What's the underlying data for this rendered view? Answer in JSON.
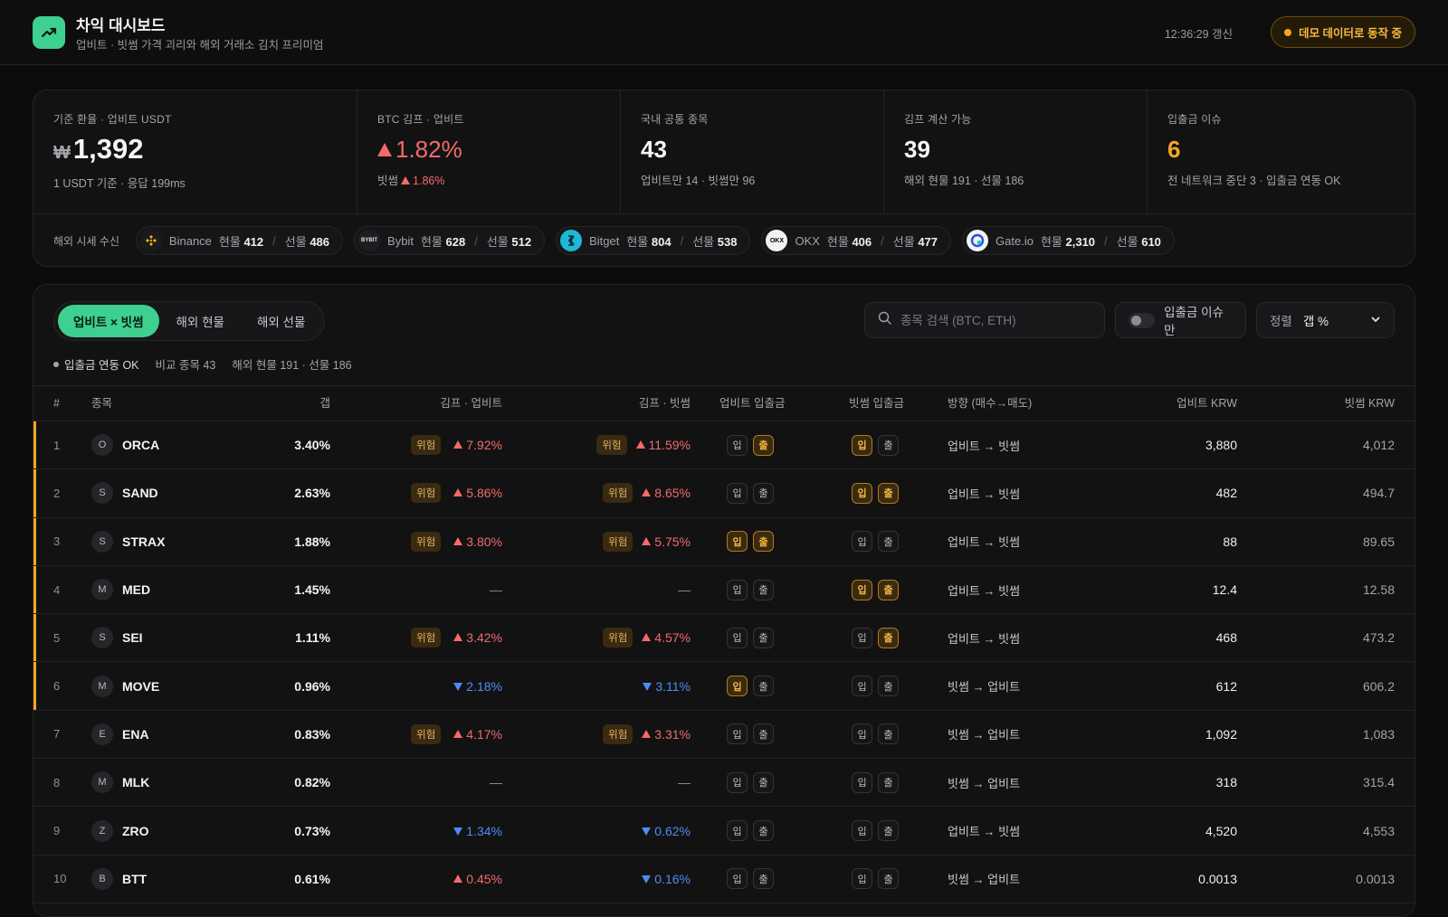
{
  "header": {
    "title": "차익 대시보드",
    "subtitle": "업비트 · 빗썸 가격 괴리와 해외 거래소 김치 프리미엄",
    "updated": "12:36:29 갱신",
    "demo_badge": "데모 데이터로 동작 중",
    "logo_icon": "trending-up-icon",
    "accent": "#3ed08e"
  },
  "stats": {
    "cards": [
      {
        "label": "기준 환율 · 업비트 USDT",
        "currency": "₩",
        "value": "1,392",
        "sub": "1 USDT 기준 · 응답 199ms"
      },
      {
        "label": "BTC 김프 · 업비트",
        "value": "1.82%",
        "sub_prefix": "빗썸",
        "sub_value": "1.86%"
      },
      {
        "label": "국내 공통 종목",
        "value": "43",
        "sub": "업비트만 14 · 빗썸만 96"
      },
      {
        "label": "김프 계산 가능",
        "value": "39",
        "sub": "해외 현물 191 · 선물 186"
      },
      {
        "label": "입출금 이슈",
        "value": "6",
        "sub": "전 네트워크 중단 3 · 입출금 연동 OK"
      }
    ],
    "exchange_label": "해외 시세 수신",
    "exchanges": [
      {
        "name": "Binance",
        "spot_label": "현물",
        "spot": "412",
        "fut_label": "선물",
        "fut": "486",
        "icon": "binance-icon"
      },
      {
        "name": "Bybit",
        "spot_label": "현물",
        "spot": "628",
        "fut_label": "선물",
        "fut": "512",
        "icon": "bybit-icon",
        "icon_text": "BYBIT"
      },
      {
        "name": "Bitget",
        "spot_label": "현물",
        "spot": "804",
        "fut_label": "선물",
        "fut": "538",
        "icon": "bitget-icon"
      },
      {
        "name": "OKX",
        "spot_label": "현물",
        "spot": "406",
        "fut_label": "선물",
        "fut": "477",
        "icon": "okx-icon",
        "icon_text": "OKX"
      },
      {
        "name": "Gate.io",
        "spot_label": "현물",
        "spot": "2,310",
        "fut_label": "선물",
        "fut": "610",
        "icon": "gateio-icon"
      }
    ]
  },
  "controls": {
    "tabs": [
      "업비트 × 빗썸",
      "해외 현물",
      "해외 선물"
    ],
    "active_tab": 0,
    "search_placeholder": "종목 검색 (BTC, ETH)",
    "toggle_label": "입출금 이슈만",
    "sort_label": "정렬",
    "sort_value": "갭 %"
  },
  "meta": {
    "status": "입출금 연동 OK",
    "compare": "비교 종목 43",
    "overseas": "해외 현물 191 · 선물 186"
  },
  "table": {
    "headers": {
      "idx": "#",
      "symbol": "종목",
      "gap": "갭",
      "kp_upbit": "김프 · 업비트",
      "kp_bithumb": "김프 · 빗썸",
      "io_upbit": "업비트 입출금",
      "io_bithumb": "빗썸 입출금",
      "direction": "방향 (매수→매도)",
      "krw_upbit": "업비트 KRW",
      "krw_bithumb": "빗썸 KRW"
    },
    "risk_label": "위험",
    "in_label": "입",
    "out_label": "출",
    "rows": [
      {
        "idx": "1",
        "initial": "O",
        "symbol": "ORCA",
        "gap": "3.40%",
        "kp1": {
          "risk": true,
          "dir": "up",
          "v": "7.92%"
        },
        "kp2": {
          "risk": true,
          "dir": "up",
          "v": "11.59%"
        },
        "io1": [
          false,
          true
        ],
        "io2": [
          true,
          false
        ],
        "direction": "업비트 → 빗썸",
        "krw1": "3,880",
        "krw2": "4,012",
        "hl": true
      },
      {
        "idx": "2",
        "initial": "S",
        "symbol": "SAND",
        "gap": "2.63%",
        "kp1": {
          "risk": true,
          "dir": "up",
          "v": "5.86%"
        },
        "kp2": {
          "risk": true,
          "dir": "up",
          "v": "8.65%"
        },
        "io1": [
          false,
          false
        ],
        "io2": [
          true,
          true
        ],
        "direction": "업비트 → 빗썸",
        "krw1": "482",
        "krw2": "494.7",
        "hl": true
      },
      {
        "idx": "3",
        "initial": "S",
        "symbol": "STRAX",
        "gap": "1.88%",
        "kp1": {
          "risk": true,
          "dir": "up",
          "v": "3.80%"
        },
        "kp2": {
          "risk": true,
          "dir": "up",
          "v": "5.75%"
        },
        "io1": [
          true,
          true
        ],
        "io2": [
          false,
          false
        ],
        "direction": "업비트 → 빗썸",
        "krw1": "88",
        "krw2": "89.65",
        "hl": true
      },
      {
        "idx": "4",
        "initial": "M",
        "symbol": "MED",
        "gap": "1.45%",
        "kp1": {
          "risk": false,
          "dir": "none",
          "v": "—"
        },
        "kp2": {
          "risk": false,
          "dir": "none",
          "v": "—"
        },
        "io1": [
          false,
          false
        ],
        "io2": [
          true,
          true
        ],
        "direction": "업비트 → 빗썸",
        "krw1": "12.4",
        "krw2": "12.58",
        "hl": true
      },
      {
        "idx": "5",
        "initial": "S",
        "symbol": "SEI",
        "gap": "1.11%",
        "kp1": {
          "risk": true,
          "dir": "up",
          "v": "3.42%"
        },
        "kp2": {
          "risk": true,
          "dir": "up",
          "v": "4.57%"
        },
        "io1": [
          false,
          false
        ],
        "io2": [
          false,
          true
        ],
        "direction": "업비트 → 빗썸",
        "krw1": "468",
        "krw2": "473.2",
        "hl": true
      },
      {
        "idx": "6",
        "initial": "M",
        "symbol": "MOVE",
        "gap": "0.96%",
        "kp1": {
          "risk": false,
          "dir": "down",
          "v": "2.18%"
        },
        "kp2": {
          "risk": false,
          "dir": "down",
          "v": "3.11%"
        },
        "io1": [
          true,
          false
        ],
        "io2": [
          false,
          false
        ],
        "direction": "빗썸 → 업비트",
        "krw1": "612",
        "krw2": "606.2",
        "hl": true
      },
      {
        "idx": "7",
        "initial": "E",
        "symbol": "ENA",
        "gap": "0.83%",
        "kp1": {
          "risk": true,
          "dir": "up",
          "v": "4.17%"
        },
        "kp2": {
          "risk": true,
          "dir": "up",
          "v": "3.31%"
        },
        "io1": [
          false,
          false
        ],
        "io2": [
          false,
          false
        ],
        "direction": "빗썸 → 업비트",
        "krw1": "1,092",
        "krw2": "1,083",
        "hl": false
      },
      {
        "idx": "8",
        "initial": "M",
        "symbol": "MLK",
        "gap": "0.82%",
        "kp1": {
          "risk": false,
          "dir": "none",
          "v": "—"
        },
        "kp2": {
          "risk": false,
          "dir": "none",
          "v": "—"
        },
        "io1": [
          false,
          false
        ],
        "io2": [
          false,
          false
        ],
        "direction": "빗썸 → 업비트",
        "krw1": "318",
        "krw2": "315.4",
        "hl": false
      },
      {
        "idx": "9",
        "initial": "Z",
        "symbol": "ZRO",
        "gap": "0.73%",
        "kp1": {
          "risk": false,
          "dir": "down",
          "v": "1.34%"
        },
        "kp2": {
          "risk": false,
          "dir": "down",
          "v": "0.62%"
        },
        "io1": [
          false,
          false
        ],
        "io2": [
          false,
          false
        ],
        "direction": "업비트 → 빗썸",
        "krw1": "4,520",
        "krw2": "4,553",
        "hl": false
      },
      {
        "idx": "10",
        "initial": "B",
        "symbol": "BTT",
        "gap": "0.61%",
        "kp1": {
          "risk": false,
          "dir": "up",
          "v": "0.45%"
        },
        "kp2": {
          "risk": false,
          "dir": "down",
          "v": "0.16%"
        },
        "io1": [
          false,
          false
        ],
        "io2": [
          false,
          false
        ],
        "direction": "빗썸 → 업비트",
        "krw1": "0.0013",
        "krw2": "0.0013",
        "hl": false
      }
    ]
  },
  "colors": {
    "up": "#f46a6a",
    "down": "#4c8df6",
    "warn": "#f5a524"
  }
}
